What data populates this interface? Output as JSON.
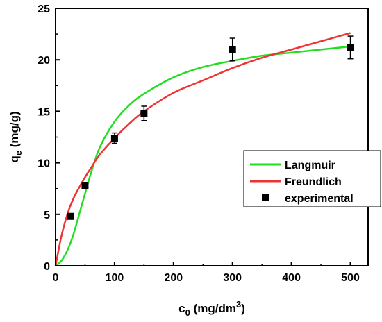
{
  "chart_data": {
    "type": "scatter",
    "xlabel": {
      "base": "c",
      "sub": "0",
      "rest": " (mg/dm",
      "sup": "3",
      "end": ")"
    },
    "ylabel": {
      "base": "q",
      "sub": "e",
      "rest": " (mg/g)"
    },
    "xlim": [
      0,
      530
    ],
    "ylim": [
      0,
      25
    ],
    "xticks": [
      0,
      100,
      200,
      300,
      400,
      500
    ],
    "yticks": [
      0,
      5,
      10,
      15,
      20,
      25
    ],
    "grid": false,
    "legend_position": "right-middle",
    "series": [
      {
        "name": "Langmuir",
        "kind": "line",
        "color": "#22dd22",
        "x": [
          0,
          10,
          20,
          30,
          40,
          50,
          60,
          75,
          100,
          125,
          150,
          200,
          250,
          300,
          350,
          400,
          450,
          500
        ],
        "y": [
          0.0,
          0.5,
          1.5,
          3.0,
          5.0,
          7.0,
          9.0,
          11.5,
          14.0,
          15.6,
          16.7,
          18.3,
          19.3,
          19.9,
          20.4,
          20.7,
          21.0,
          21.3
        ]
      },
      {
        "name": "Freundlich",
        "kind": "line",
        "color": "#ee3333",
        "x": [
          0,
          5,
          10,
          20,
          30,
          40,
          50,
          60,
          75,
          100,
          125,
          150,
          200,
          250,
          300,
          350,
          400,
          450,
          500
        ],
        "y": [
          0.0,
          1.5,
          2.9,
          5.0,
          6.5,
          7.6,
          8.6,
          9.5,
          10.8,
          12.4,
          13.8,
          15.0,
          16.8,
          18.0,
          19.2,
          20.2,
          21.0,
          21.8,
          22.6
        ]
      },
      {
        "name": "experimental",
        "kind": "points",
        "color": "#000000",
        "x": [
          25,
          50,
          100,
          150,
          300,
          500
        ],
        "y": [
          4.8,
          7.8,
          12.4,
          14.8,
          21.0,
          21.2
        ],
        "yerr": [
          0.2,
          0.3,
          0.5,
          0.7,
          1.1,
          1.1
        ]
      }
    ]
  }
}
